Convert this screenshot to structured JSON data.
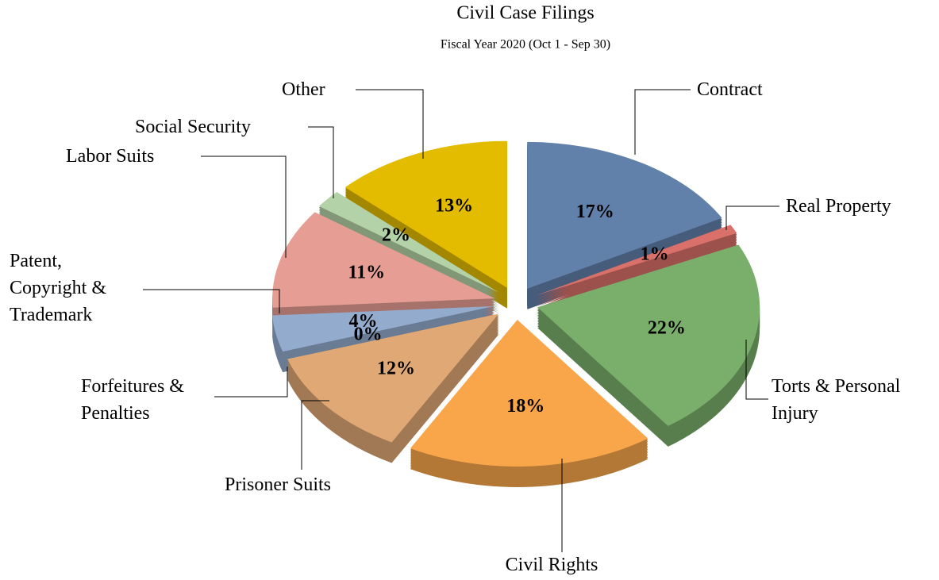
{
  "chart_data": {
    "type": "pie",
    "title": "Civil Case Filings",
    "subtitle": "Fiscal Year 2020 (Oct 1 - Sep 30)",
    "categories": [
      "Contract",
      "Real Property",
      "Torts & Personal Injury",
      "Civil Rights",
      "Prisoner Suits",
      "Forfeitures & Penalties",
      "Patent, Copyright & Trademark",
      "Labor Suits",
      "Social Security",
      "Other"
    ],
    "values": [
      17,
      1,
      22,
      18,
      12,
      0,
      4,
      11,
      2,
      13
    ],
    "value_labels": [
      "17%",
      "1%",
      "22%",
      "18%",
      "12%",
      "0%",
      "4%",
      "11%",
      "2%",
      "13%"
    ],
    "colors": [
      "#6180aa",
      "#d9706a",
      "#7aaf6b",
      "#f9a64b",
      "#e0a874",
      "#6b5a80",
      "#93abcd",
      "#e69e94",
      "#b4d2a7",
      "#e3bc00"
    ]
  }
}
